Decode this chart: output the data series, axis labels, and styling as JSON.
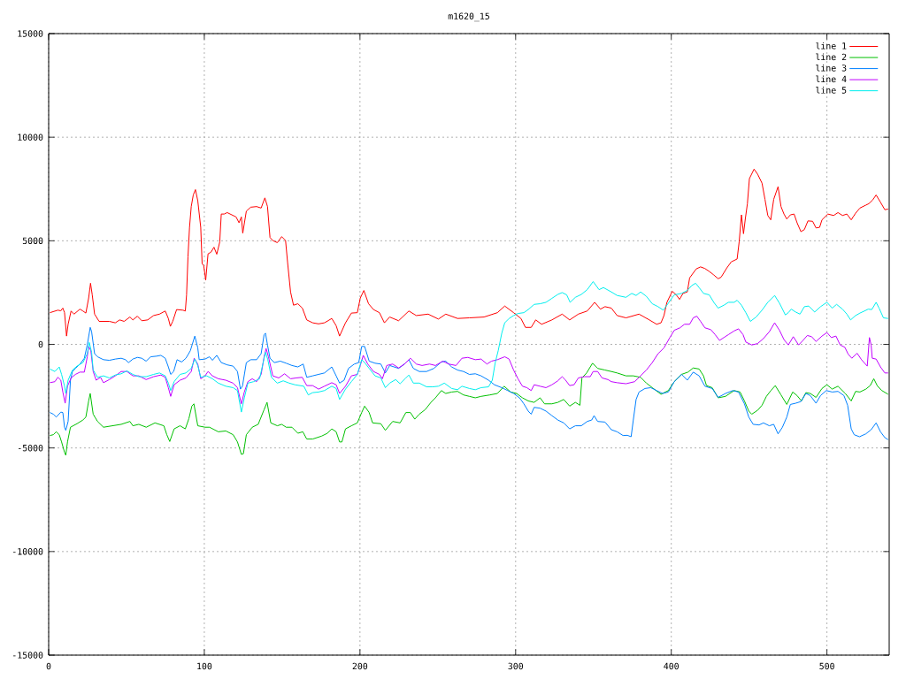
{
  "chart_data": {
    "type": "line",
    "title": "m1620_15",
    "xlim": [
      0,
      540
    ],
    "ylim": [
      -15000,
      15000
    ],
    "xticks": [
      0,
      100,
      200,
      300,
      400,
      500
    ],
    "yticks": [
      -15000,
      -10000,
      -5000,
      0,
      5000,
      10000,
      15000
    ],
    "grid": true,
    "legend": "top right",
    "series": [
      {
        "name": "line 1",
        "color": "#ff0000",
        "x": [
          0.8,
          5.9,
          7.8,
          9.1,
          10.2,
          11.5,
          12.5,
          14.4,
          16.3,
          20.1,
          22.0,
          23.9,
          25.7,
          26.9,
          28.0,
          29.5,
          32.4,
          35.2,
          39.0,
          42.8,
          45.6,
          48.5,
          52.2,
          54.1,
          57.0,
          59.8,
          63.6,
          67.4,
          71.2,
          74.9,
          76.9,
          78.2,
          79.7,
          82.2,
          86.3,
          87.8,
          88.6,
          89.5,
          90.5,
          91.6,
          92.9,
          94.3,
          95.8,
          97.7,
          98.6,
          99.6,
          100.9,
          102.4,
          104.3,
          106.2,
          108.0,
          109.9,
          110.9,
          112.8,
          114.7,
          116.6,
          118.5,
          120.4,
          122.3,
          123.8,
          124.7,
          127.0,
          129.8,
          133.6,
          136.5,
          138.9,
          140.6,
          142.2,
          144.0,
          146.9,
          149.7,
          152.2,
          153.5,
          155.4,
          157.3,
          160.1,
          163.0,
          165.8,
          169.6,
          173.4,
          177.2,
          181.9,
          184.7,
          186.9,
          190.7,
          194.5,
          198.3,
          200.2,
          202.5,
          205.5,
          208.7,
          212.5,
          215.7,
          219.1,
          224.8,
          231.4,
          236.2,
          243.8,
          250.4,
          255.1,
          262.7,
          270.3,
          279.7,
          288.3,
          293.0,
          298.7,
          303.4,
          306.3,
          310.0,
          312.9,
          316.7,
          323.3,
          329.9,
          334.7,
          340.3,
          346.0,
          350.8,
          354.5,
          357.4,
          361.5,
          365.2,
          370.9,
          379.3,
          385.9,
          390.6,
          393.4,
          395.3,
          397.2,
          400.6,
          403.2,
          405.3,
          407.5,
          410.3,
          411.8,
          416.0,
          418.8,
          421.6,
          424.4,
          427.3,
          430.1,
          432.0,
          435.7,
          438.5,
          442.3,
          443.6,
          445.1,
          446.4,
          447.6,
          448.9,
          450.2,
          453.2,
          455.5,
          458.3,
          460.2,
          462.0,
          463.9,
          465.8,
          468.6,
          470.5,
          472.4,
          474.2,
          476.5,
          478.9,
          480.8,
          483.3,
          485.5,
          487.8,
          490.8,
          493.0,
          495.3,
          496.8,
          500.6,
          504.3,
          507.1,
          510.0,
          512.8,
          515.6,
          518.4,
          521.2,
          525.0,
          526.9,
          529.3,
          531.6,
          534.4,
          537.2,
          539.3
        ],
        "values": [
          1530,
          1650,
          1620,
          1750,
          1530,
          400,
          970,
          1610,
          1460,
          1700,
          1610,
          1510,
          2240,
          2950,
          2390,
          1460,
          1110,
          1110,
          1110,
          1040,
          1180,
          1110,
          1320,
          1180,
          1360,
          1140,
          1180,
          1390,
          1460,
          1610,
          1250,
          870,
          1110,
          1680,
          1650,
          1610,
          2390,
          4230,
          5650,
          6650,
          7210,
          7470,
          6930,
          5650,
          3880,
          3810,
          3100,
          4370,
          4450,
          4690,
          4350,
          4940,
          6290,
          6290,
          6360,
          6290,
          6220,
          6150,
          5870,
          6150,
          5370,
          6430,
          6620,
          6650,
          6580,
          7070,
          6650,
          5160,
          5010,
          4910,
          5200,
          5010,
          3950,
          2530,
          1890,
          1960,
          1750,
          1180,
          1040,
          990,
          1040,
          1250,
          900,
          400,
          1040,
          1510,
          1530,
          2240,
          2600,
          1960,
          1680,
          1530,
          1040,
          1320,
          1140,
          1610,
          1390,
          1460,
          1220,
          1460,
          1250,
          1280,
          1320,
          1530,
          1850,
          1530,
          1250,
          820,
          820,
          1180,
          970,
          1180,
          1460,
          1180,
          1460,
          1610,
          2030,
          1700,
          1820,
          1750,
          1390,
          1280,
          1460,
          1180,
          970,
          1040,
          1390,
          2030,
          2560,
          2390,
          2170,
          2460,
          2530,
          3210,
          3640,
          3740,
          3660,
          3520,
          3350,
          3170,
          3240,
          3690,
          3980,
          4120,
          4940,
          6250,
          5340,
          6080,
          6790,
          8000,
          8460,
          8210,
          7780,
          7000,
          6220,
          6010,
          7000,
          7610,
          6650,
          6290,
          6050,
          6250,
          6290,
          5870,
          5440,
          5540,
          5960,
          5940,
          5620,
          5650,
          6010,
          6290,
          6220,
          6360,
          6220,
          6290,
          6010,
          6330,
          6580,
          6720,
          6790,
          6960,
          7210,
          6860,
          6500,
          6530
        ]
      },
      {
        "name": "line 2",
        "color": "#00c000",
        "x": [
          0.8,
          3.0,
          4.9,
          6.8,
          8.3,
          10.2,
          11.0,
          12.1,
          14.0,
          18.2,
          22.0,
          23.9,
          25.7,
          26.7,
          28.6,
          31.4,
          35.2,
          40.9,
          46.6,
          52.2,
          54.1,
          57.9,
          62.7,
          68.3,
          74.0,
          75.9,
          77.8,
          80.6,
          84.4,
          87.8,
          90.1,
          92.0,
          93.3,
          95.8,
          100.5,
          103.3,
          109.0,
          113.8,
          118.5,
          121.3,
          123.8,
          125.1,
          127.0,
          130.8,
          134.6,
          138.4,
          140.3,
          142.7,
          146.9,
          149.7,
          152.6,
          156.3,
          160.1,
          163.3,
          165.8,
          169.6,
          175.3,
          179.1,
          181.9,
          184.7,
          186.9,
          188.4,
          190.7,
          194.5,
          198.3,
          201.1,
          203.0,
          205.9,
          208.1,
          213.4,
          216.3,
          221.0,
          225.8,
          229.5,
          232.4,
          235.2,
          238.1,
          241.9,
          245.6,
          248.5,
          252.3,
          255.1,
          258.9,
          262.7,
          266.5,
          270.3,
          274.1,
          277.8,
          283.5,
          288.3,
          292.6,
          296.8,
          300.6,
          304.4,
          308.1,
          311.9,
          315.7,
          318.6,
          323.3,
          327.1,
          330.9,
          334.7,
          338.4,
          341.3,
          342.6,
          345.6,
          349.4,
          352.7,
          357.4,
          361.5,
          365.2,
          370.9,
          375.6,
          380.3,
          384.0,
          387.8,
          393.4,
          398.1,
          401.9,
          406.6,
          410.7,
          414.1,
          417.9,
          420.7,
          422.6,
          426.3,
          430.1,
          434.8,
          440.4,
          444.2,
          447.0,
          449.8,
          451.7,
          455.5,
          458.3,
          461.1,
          464.0,
          466.8,
          470.5,
          474.2,
          478.0,
          480.8,
          483.6,
          486.5,
          489.3,
          493.0,
          496.8,
          500.0,
          503.4,
          507.1,
          511.8,
          515.6,
          518.4,
          521.2,
          525.0,
          527.8,
          530.1,
          532.5,
          535.3,
          539.3
        ],
        "values": [
          -4400,
          -4360,
          -4220,
          -4360,
          -4710,
          -5210,
          -5350,
          -4710,
          -4000,
          -3830,
          -3650,
          -3510,
          -2730,
          -2370,
          -3370,
          -3720,
          -4000,
          -3930,
          -3860,
          -3720,
          -3930,
          -3860,
          -4000,
          -3790,
          -3930,
          -4360,
          -4690,
          -4080,
          -3930,
          -4080,
          -3580,
          -2980,
          -2870,
          -3930,
          -4000,
          -4000,
          -4220,
          -4180,
          -4360,
          -4710,
          -5310,
          -5280,
          -4360,
          -4000,
          -3860,
          -3150,
          -2800,
          -3790,
          -3930,
          -3860,
          -4000,
          -4000,
          -4290,
          -4220,
          -4570,
          -4570,
          -4430,
          -4290,
          -4080,
          -4220,
          -4710,
          -4710,
          -4080,
          -3930,
          -3790,
          -3290,
          -2980,
          -3290,
          -3790,
          -3830,
          -4150,
          -3720,
          -3790,
          -3290,
          -3290,
          -3610,
          -3370,
          -3150,
          -2800,
          -2580,
          -2230,
          -2370,
          -2300,
          -2270,
          -2440,
          -2510,
          -2580,
          -2510,
          -2440,
          -2370,
          -2020,
          -2300,
          -2370,
          -2580,
          -2730,
          -2800,
          -2580,
          -2870,
          -2870,
          -2800,
          -2660,
          -2980,
          -2800,
          -2940,
          -1620,
          -1380,
          -910,
          -1160,
          -1240,
          -1310,
          -1380,
          -1520,
          -1520,
          -1590,
          -1870,
          -2090,
          -2410,
          -2230,
          -1800,
          -1450,
          -1340,
          -1140,
          -1190,
          -1520,
          -1990,
          -2090,
          -2580,
          -2510,
          -2230,
          -2300,
          -2730,
          -3220,
          -3370,
          -3180,
          -2940,
          -2510,
          -2230,
          -1990,
          -2440,
          -2900,
          -2300,
          -2470,
          -2730,
          -2330,
          -2370,
          -2560,
          -2130,
          -1950,
          -2160,
          -2020,
          -2370,
          -2730,
          -2270,
          -2300,
          -2160,
          -1990,
          -1660,
          -2020,
          -2230,
          -2410
        ]
      },
      {
        "name": "line 3",
        "color": "#0080ff",
        "x": [
          0.8,
          3.0,
          4.9,
          7.8,
          9.1,
          10.2,
          11.0,
          12.5,
          14.0,
          15.3,
          17.2,
          20.1,
          22.9,
          24.8,
          26.7,
          27.6,
          29.5,
          31.4,
          35.2,
          39.0,
          42.8,
          46.6,
          49.4,
          51.3,
          54.1,
          57.0,
          59.8,
          62.6,
          65.5,
          69.3,
          72.1,
          74.9,
          76.9,
          78.4,
          80.3,
          82.5,
          85.4,
          88.2,
          91.0,
          93.9,
          95.8,
          96.7,
          100.5,
          103.3,
          105.2,
          108.0,
          110.9,
          114.7,
          118.5,
          121.3,
          123.2,
          124.5,
          127.0,
          129.8,
          133.6,
          136.5,
          138.4,
          139.3,
          140.6,
          142.2,
          145.0,
          148.8,
          152.6,
          156.3,
          160.1,
          163.5,
          165.8,
          169.6,
          173.4,
          177.2,
          181.9,
          184.7,
          186.9,
          189.8,
          192.6,
          196.4,
          199.2,
          201.1,
          203.0,
          205.9,
          209.7,
          213.4,
          216.3,
          219.1,
          224.8,
          228.6,
          231.4,
          234.3,
          238.1,
          242.8,
          247.5,
          252.3,
          255.1,
          258.9,
          262.7,
          266.5,
          270.3,
          274.1,
          277.8,
          282.6,
          286.4,
          291.1,
          294.9,
          298.7,
          302.5,
          305.3,
          308.1,
          310.0,
          311.9,
          315.7,
          319.5,
          323.3,
          327.1,
          330.9,
          334.7,
          338.4,
          342.2,
          346.0,
          348.9,
          350.4,
          352.7,
          357.4,
          361.5,
          365.2,
          369.0,
          371.8,
          374.2,
          375.6,
          377.4,
          379.3,
          383.1,
          386.8,
          390.6,
          394.4,
          398.1,
          401.9,
          406.6,
          410.3,
          414.1,
          417.9,
          421.6,
          426.3,
          430.1,
          434.8,
          439.5,
          443.2,
          447.0,
          449.8,
          452.6,
          456.4,
          459.2,
          463.0,
          465.8,
          468.6,
          471.4,
          474.2,
          476.5,
          479.9,
          483.3,
          486.5,
          489.3,
          493.0,
          495.9,
          499.6,
          503.4,
          507.1,
          510.9,
          513.3,
          515.6,
          517.5,
          520.9,
          525.0,
          528.4,
          531.6,
          534.4,
          537.2,
          539.3
        ],
        "values": [
          -3290,
          -3370,
          -3510,
          -3270,
          -3290,
          -4000,
          -4150,
          -3720,
          -1730,
          -1310,
          -1160,
          -950,
          -670,
          -30,
          820,
          610,
          -450,
          -600,
          -740,
          -770,
          -710,
          -670,
          -740,
          -880,
          -710,
          -630,
          -670,
          -810,
          -600,
          -570,
          -530,
          -670,
          -1090,
          -1450,
          -1310,
          -740,
          -850,
          -670,
          -310,
          400,
          -170,
          -740,
          -710,
          -600,
          -770,
          -530,
          -880,
          -990,
          -1050,
          -1310,
          -2160,
          -2020,
          -880,
          -740,
          -740,
          -450,
          470,
          540,
          -30,
          -670,
          -880,
          -810,
          -910,
          -1020,
          -1090,
          -950,
          -1590,
          -1520,
          -1450,
          -1380,
          -1090,
          -1520,
          -1870,
          -1730,
          -1160,
          -950,
          -880,
          -100,
          -100,
          -810,
          -910,
          -950,
          -1380,
          -1020,
          -1160,
          -950,
          -740,
          -1160,
          -1310,
          -1310,
          -1160,
          -850,
          -810,
          -1090,
          -1240,
          -1310,
          -1450,
          -1420,
          -1520,
          -1730,
          -1950,
          -2090,
          -2230,
          -2370,
          -2580,
          -2870,
          -3220,
          -3370,
          -3040,
          -3080,
          -3220,
          -3440,
          -3650,
          -3790,
          -4080,
          -3930,
          -3930,
          -3720,
          -3650,
          -3440,
          -3720,
          -3750,
          -4120,
          -4220,
          -4400,
          -4390,
          -4460,
          -3650,
          -2660,
          -2300,
          -2130,
          -2090,
          -2230,
          -2370,
          -2300,
          -1800,
          -1450,
          -1730,
          -1340,
          -1520,
          -2020,
          -2130,
          -2560,
          -2370,
          -2230,
          -2300,
          -2870,
          -3510,
          -3860,
          -3890,
          -3790,
          -3930,
          -3860,
          -4320,
          -4000,
          -3510,
          -2900,
          -2840,
          -2760,
          -2370,
          -2470,
          -2840,
          -2470,
          -2230,
          -2300,
          -2270,
          -2470,
          -2940,
          -4080,
          -4360,
          -4460,
          -4320,
          -4120,
          -3790,
          -4220,
          -4500,
          -4600
        ]
      },
      {
        "name": "line 4",
        "color": "#c000ff",
        "x": [
          0.8,
          4.0,
          5.9,
          7.8,
          9.1,
          10.6,
          12.1,
          14.4,
          17.2,
          20.1,
          22.9,
          24.8,
          25.7,
          27.1,
          28.6,
          30.5,
          33.3,
          35.2,
          39.0,
          42.8,
          46.6,
          50.3,
          54.1,
          57.9,
          62.6,
          67.4,
          72.1,
          74.9,
          76.9,
          78.4,
          80.6,
          84.4,
          88.2,
          91.6,
          93.5,
          95.8,
          97.7,
          100.5,
          102.4,
          105.2,
          109.0,
          113.8,
          118.5,
          121.3,
          123.8,
          125.7,
          128.0,
          130.8,
          133.6,
          136.5,
          138.4,
          139.7,
          141.2,
          144.0,
          147.8,
          151.6,
          155.4,
          159.1,
          162.9,
          165.8,
          169.6,
          173.4,
          177.2,
          181.9,
          184.7,
          186.9,
          190.7,
          194.5,
          198.3,
          200.2,
          202.1,
          205.0,
          208.7,
          212.5,
          214.4,
          217.2,
          221.0,
          224.8,
          228.6,
          232.4,
          236.2,
          239.9,
          244.7,
          248.5,
          253.2,
          257.0,
          261.7,
          265.5,
          269.3,
          274.1,
          277.8,
          281.6,
          284.5,
          288.3,
          293.0,
          295.8,
          298.7,
          301.5,
          304.4,
          307.2,
          310.0,
          311.9,
          315.7,
          319.5,
          323.3,
          327.1,
          329.9,
          331.8,
          334.7,
          337.5,
          340.3,
          344.1,
          347.9,
          349.8,
          352.7,
          355.5,
          359.3,
          361.5,
          365.2,
          370.9,
          376.5,
          380.3,
          384.0,
          387.8,
          391.5,
          395.3,
          399.1,
          401.9,
          405.6,
          408.5,
          411.8,
          414.1,
          416.4,
          418.8,
          421.6,
          425.4,
          428.2,
          431.0,
          433.8,
          436.7,
          440.4,
          443.2,
          446.1,
          447.9,
          451.7,
          455.5,
          459.2,
          463.0,
          466.4,
          469.5,
          472.4,
          475.2,
          478.4,
          481.8,
          484.6,
          487.4,
          490.2,
          493.0,
          496.8,
          500.0,
          502.8,
          505.8,
          508.5,
          511.5,
          513.7,
          516.0,
          519.4,
          522.2,
          525.9,
          527.3,
          528.4,
          529.1,
          531.6,
          534.4,
          537.2,
          539.3
        ],
        "values": [
          -1850,
          -1800,
          -1590,
          -1730,
          -2300,
          -2840,
          -2020,
          -1620,
          -1450,
          -1340,
          -1340,
          -600,
          -100,
          -310,
          -1310,
          -1730,
          -1590,
          -1850,
          -1700,
          -1520,
          -1310,
          -1310,
          -1520,
          -1520,
          -1700,
          -1560,
          -1480,
          -1590,
          -2090,
          -2510,
          -1950,
          -1730,
          -1620,
          -1310,
          -670,
          -950,
          -1660,
          -1520,
          -1310,
          -1520,
          -1660,
          -1730,
          -1870,
          -2090,
          -2870,
          -2300,
          -1800,
          -1660,
          -1800,
          -1450,
          -600,
          -200,
          -600,
          -1520,
          -1620,
          -1420,
          -1660,
          -1620,
          -1590,
          -1990,
          -1990,
          -2160,
          -2020,
          -1850,
          -1950,
          -2370,
          -2020,
          -1520,
          -1450,
          -1020,
          -530,
          -950,
          -1310,
          -1450,
          -1660,
          -1020,
          -950,
          -1140,
          -950,
          -670,
          -950,
          -1020,
          -950,
          -1020,
          -810,
          -950,
          -1020,
          -670,
          -630,
          -740,
          -710,
          -950,
          -810,
          -740,
          -600,
          -710,
          -1240,
          -1660,
          -2020,
          -2090,
          -2230,
          -1950,
          -2020,
          -2090,
          -1950,
          -1760,
          -1560,
          -1700,
          -1990,
          -1950,
          -1620,
          -1560,
          -1560,
          -1310,
          -1310,
          -1620,
          -1700,
          -1800,
          -1850,
          -1900,
          -1800,
          -1520,
          -1240,
          -880,
          -450,
          -170,
          330,
          680,
          800,
          970,
          970,
          1280,
          1360,
          1110,
          800,
          710,
          470,
          190,
          330,
          470,
          650,
          750,
          470,
          110,
          -30,
          40,
          280,
          610,
          1040,
          680,
          230,
          -30,
          370,
          -30,
          190,
          430,
          370,
          140,
          400,
          570,
          330,
          400,
          -30,
          -140,
          -480,
          -670,
          -430,
          -740,
          -1050,
          330,
          -30,
          -670,
          -710,
          -1090,
          -1380,
          -1380
        ]
      },
      {
        "name": "line 5",
        "color": "#00eeee",
        "x": [
          0.8,
          4.0,
          6.8,
          8.3,
          10.2,
          11.0,
          12.5,
          15.3,
          18.2,
          22.0,
          24.8,
          26.1,
          27.6,
          28.6,
          31.4,
          35.2,
          39.0,
          42.8,
          46.6,
          50.3,
          54.1,
          57.9,
          62.6,
          67.4,
          71.2,
          74.9,
          76.9,
          78.4,
          80.6,
          84.4,
          88.2,
          91.6,
          93.9,
          95.8,
          97.7,
          101.5,
          105.2,
          109.0,
          113.8,
          118.5,
          121.3,
          123.8,
          125.7,
          128.0,
          131.7,
          135.5,
          137.8,
          139.3,
          140.8,
          143.1,
          146.9,
          150.7,
          154.5,
          158.2,
          163.9,
          166.8,
          169.6,
          173.4,
          177.2,
          181.9,
          184.7,
          186.9,
          190.7,
          194.5,
          198.3,
          201.1,
          203.0,
          205.9,
          209.7,
          213.4,
          216.3,
          219.1,
          222.9,
          225.8,
          229.0,
          231.4,
          234.3,
          238.1,
          242.8,
          246.6,
          250.4,
          254.2,
          258.9,
          262.7,
          265.5,
          270.3,
          274.1,
          277.8,
          282.6,
          285.0,
          286.9,
          288.8,
          291.1,
          293.0,
          295.8,
          298.7,
          301.5,
          305.3,
          308.1,
          311.9,
          315.7,
          319.5,
          323.3,
          327.1,
          329.9,
          332.8,
          335.0,
          338.4,
          342.2,
          346.0,
          349.8,
          353.6,
          356.4,
          361.5,
          365.2,
          370.9,
          374.6,
          377.4,
          380.3,
          384.0,
          387.8,
          391.5,
          394.9,
          398.1,
          401.9,
          406.6,
          410.3,
          413.2,
          415.6,
          417.9,
          420.7,
          424.4,
          427.3,
          430.1,
          433.8,
          436.7,
          440.4,
          442.3,
          445.1,
          447.9,
          450.8,
          454.5,
          458.3,
          462.0,
          466.4,
          469.5,
          473.3,
          475.2,
          477.1,
          479.9,
          482.7,
          485.5,
          488.3,
          492.1,
          495.9,
          500.0,
          503.4,
          506.2,
          510.0,
          512.8,
          515.2,
          518.4,
          521.2,
          524.1,
          526.5,
          528.8,
          531.6,
          533.5,
          536.3,
          539.3
        ],
        "values": [
          -1190,
          -1310,
          -1090,
          -1450,
          -2020,
          -2370,
          -1730,
          -1240,
          -1050,
          -880,
          -450,
          90,
          -380,
          -1240,
          -1590,
          -1520,
          -1620,
          -1480,
          -1420,
          -1280,
          -1450,
          -1560,
          -1560,
          -1450,
          -1380,
          -1520,
          -1870,
          -2230,
          -1800,
          -1450,
          -1380,
          -1160,
          -710,
          -1020,
          -1590,
          -1520,
          -1660,
          -1870,
          -2020,
          -2090,
          -2230,
          -3270,
          -2580,
          -1870,
          -1800,
          -1660,
          -880,
          -380,
          -740,
          -1590,
          -1870,
          -1760,
          -1870,
          -1950,
          -2020,
          -2440,
          -2330,
          -2300,
          -2230,
          -2020,
          -2130,
          -2660,
          -2160,
          -1800,
          -1450,
          -740,
          -880,
          -1160,
          -1520,
          -1620,
          -2090,
          -1870,
          -1700,
          -1900,
          -1660,
          -1480,
          -1870,
          -1870,
          -2050,
          -2050,
          -2020,
          -1870,
          -2130,
          -2190,
          -2020,
          -2130,
          -2190,
          -2090,
          -2050,
          -1730,
          -880,
          -310,
          540,
          1040,
          1250,
          1390,
          1490,
          1530,
          1680,
          1930,
          1960,
          2030,
          2220,
          2410,
          2500,
          2390,
          2030,
          2270,
          2410,
          2640,
          3030,
          2640,
          2740,
          2530,
          2360,
          2270,
          2460,
          2360,
          2530,
          2320,
          1960,
          1820,
          1650,
          1990,
          2390,
          2460,
          2600,
          2840,
          2950,
          2740,
          2460,
          2390,
          2030,
          1750,
          1890,
          2030,
          2030,
          2130,
          1890,
          1530,
          1110,
          1320,
          1650,
          2030,
          2360,
          1990,
          1420,
          1530,
          1700,
          1560,
          1460,
          1820,
          1850,
          1560,
          1820,
          2030,
          1750,
          1930,
          1700,
          1460,
          1180,
          1390,
          1510,
          1610,
          1700,
          1680,
          2030,
          1750,
          1280,
          1250
        ]
      }
    ]
  }
}
